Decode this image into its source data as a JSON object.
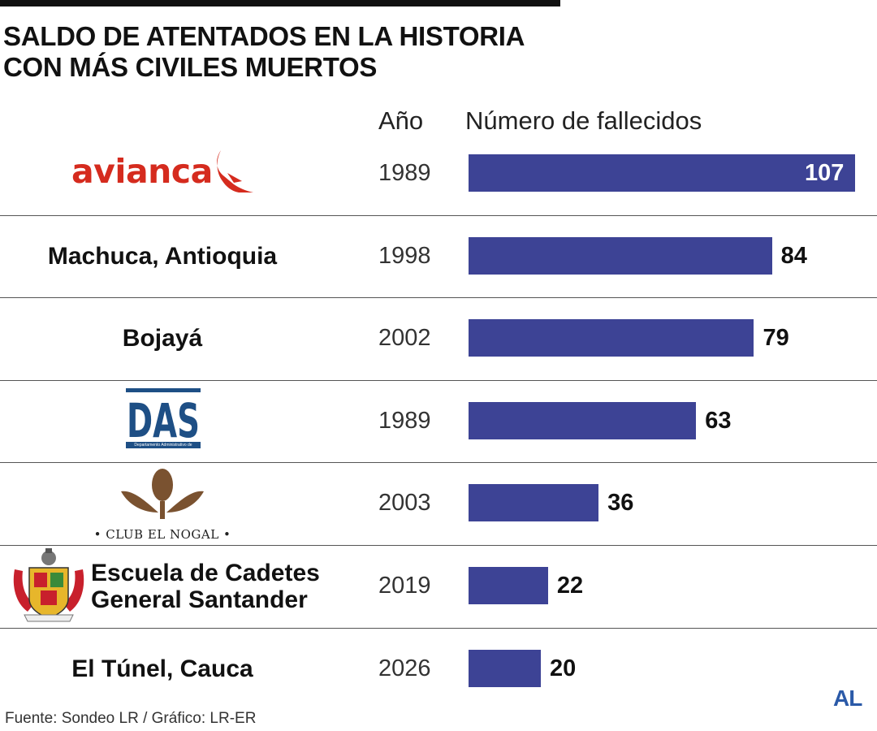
{
  "title_lines": [
    "SALDO DE ATENTADOS EN LA HISTORIA",
    "CON MÁS CIVILES MUERTOS"
  ],
  "column_headers": {
    "year": "Año",
    "value": "Número de fallecidos"
  },
  "source": "Fuente: Sondeo LR / Gráfico: LR-ER",
  "brand": "AL",
  "colors": {
    "bar": "#3d4395",
    "avianca": "#d52b1e",
    "das": "#1e4f85",
    "nogal": "#7a5230",
    "brand": "#2b5aa8"
  },
  "logos": {
    "avianca": "avianca",
    "das": "DAS",
    "das_sub": "Departamento Administrativo de Seguridad",
    "nogal": "• CLUB EL NOGAL •"
  },
  "chart_data": {
    "type": "bar",
    "orientation": "horizontal",
    "categories": [
      "avianca",
      "Machuca, Antioquia",
      "Bojayá",
      "DAS",
      "Club El Nogal",
      "Escuela de Cadetes General Santander",
      "El Túnel, Cauca"
    ],
    "years": [
      "1989",
      "1998",
      "2002",
      "1989",
      "2003",
      "2019",
      "2026"
    ],
    "values": [
      107,
      84,
      79,
      63,
      36,
      22,
      20
    ],
    "xlabel": "Número de fallecidos",
    "xlim": [
      0,
      107
    ],
    "grid": false,
    "legend": "none",
    "rows": [
      {
        "label_lines": [],
        "logo": "avianca",
        "year": "1989",
        "value": 107
      },
      {
        "label_lines": [
          "Machuca, Antioquia"
        ],
        "logo": "",
        "year": "1998",
        "value": 84
      },
      {
        "label_lines": [
          "Bojayá"
        ],
        "logo": "",
        "year": "2002",
        "value": 79
      },
      {
        "label_lines": [],
        "logo": "das",
        "year": "1989",
        "value": 63
      },
      {
        "label_lines": [],
        "logo": "nogal",
        "year": "2003",
        "value": 36
      },
      {
        "label_lines": [
          "Escuela de Cadetes",
          "General Santander"
        ],
        "logo": "crest",
        "year": "2019",
        "value": 22
      },
      {
        "label_lines": [
          "El Túnel, Cauca"
        ],
        "logo": "",
        "year": "2026",
        "value": 20
      }
    ]
  }
}
